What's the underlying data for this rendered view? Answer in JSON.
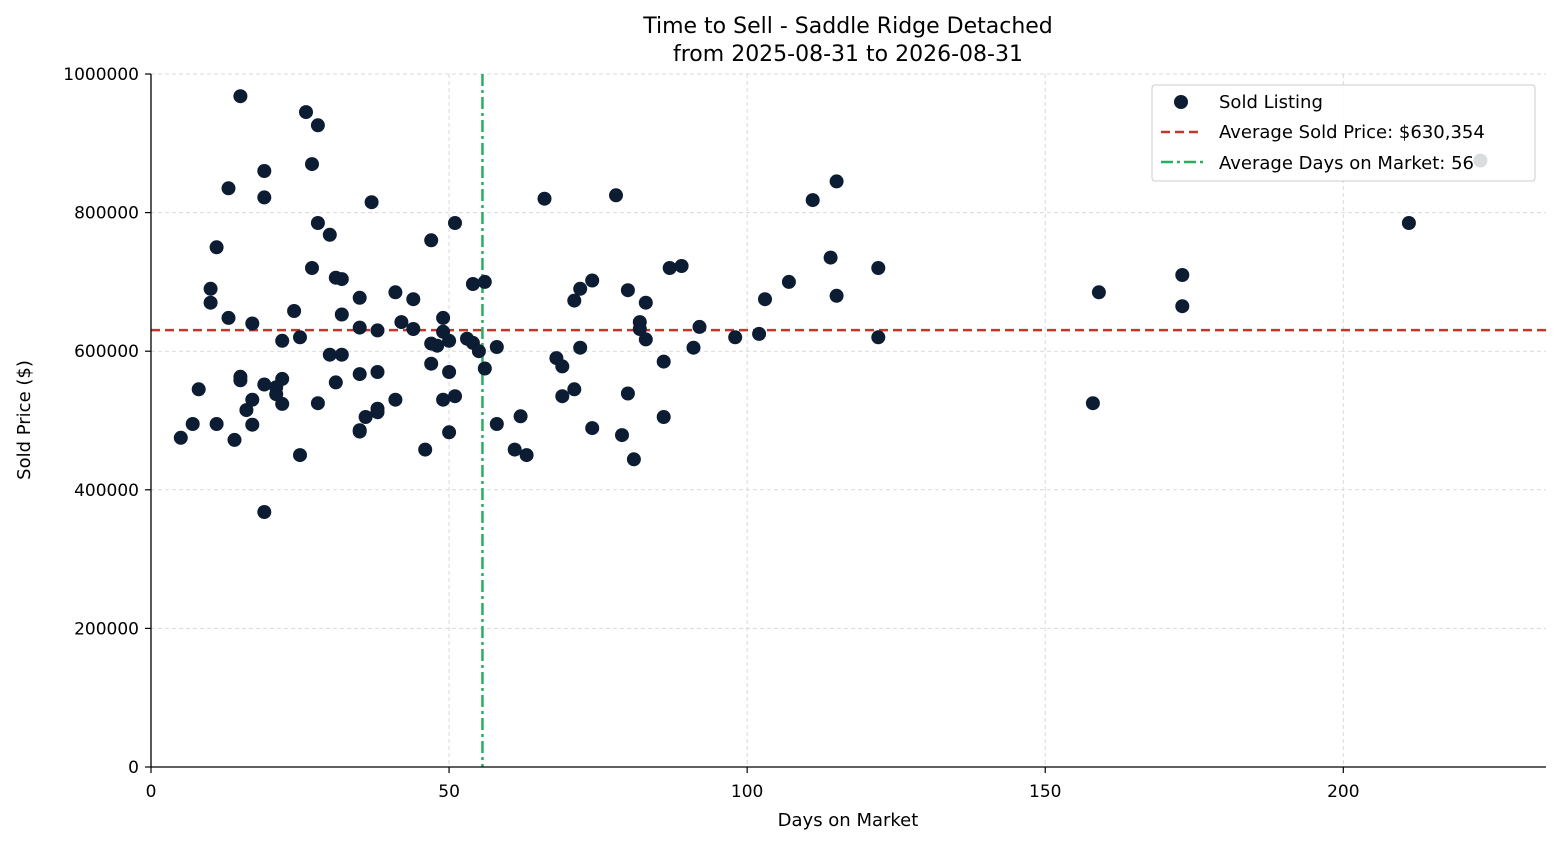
{
  "chart_data": {
    "type": "scatter",
    "title_line1": "Time to Sell - Saddle Ridge Detached",
    "title_line2": "from 2025-08-31 to 2026-08-31",
    "xlabel": "Days on Market",
    "ylabel": "Sold Price ($)",
    "xlim": [
      0,
      234
    ],
    "ylim": [
      0,
      1000000
    ],
    "xticks": [
      0,
      50,
      100,
      150,
      200
    ],
    "yticks": [
      0,
      200000,
      400000,
      600000,
      800000,
      1000000
    ],
    "grid": true,
    "legend_position": "top-right",
    "colors": {
      "points": "#0b1c33",
      "avg_price": "#c0392b",
      "avg_days": "#27ae60",
      "grid": "#d9d9d9"
    },
    "series": [
      {
        "name": "Sold Listing",
        "points": [
          [
            5,
            475000
          ],
          [
            7,
            495000
          ],
          [
            8,
            545000
          ],
          [
            10,
            690000
          ],
          [
            10,
            670000
          ],
          [
            11,
            750000
          ],
          [
            11,
            495000
          ],
          [
            13,
            835000
          ],
          [
            13,
            648000
          ],
          [
            14,
            472000
          ],
          [
            15,
            968000
          ],
          [
            15,
            563000
          ],
          [
            15,
            558000
          ],
          [
            16,
            515000
          ],
          [
            17,
            640000
          ],
          [
            17,
            530000
          ],
          [
            17,
            494000
          ],
          [
            19,
            860000
          ],
          [
            19,
            822000
          ],
          [
            19,
            552000
          ],
          [
            19,
            368000
          ],
          [
            21,
            548000
          ],
          [
            21,
            538000
          ],
          [
            22,
            560000
          ],
          [
            22,
            524000
          ],
          [
            22,
            615000
          ],
          [
            24,
            658000
          ],
          [
            25,
            620000
          ],
          [
            25,
            450000
          ],
          [
            26,
            945000
          ],
          [
            27,
            870000
          ],
          [
            27,
            720000
          ],
          [
            28,
            926000
          ],
          [
            28,
            785000
          ],
          [
            28,
            525000
          ],
          [
            30,
            768000
          ],
          [
            30,
            595000
          ],
          [
            31,
            706000
          ],
          [
            31,
            555000
          ],
          [
            32,
            704000
          ],
          [
            32,
            653000
          ],
          [
            32,
            595000
          ],
          [
            35,
            677000
          ],
          [
            35,
            634000
          ],
          [
            35,
            567000
          ],
          [
            35,
            486000
          ],
          [
            35,
            484000
          ],
          [
            36,
            505000
          ],
          [
            37,
            815000
          ],
          [
            38,
            630000
          ],
          [
            38,
            570000
          ],
          [
            38,
            517000
          ],
          [
            38,
            512000
          ],
          [
            41,
            685000
          ],
          [
            41,
            530000
          ],
          [
            42,
            642000
          ],
          [
            44,
            675000
          ],
          [
            44,
            632000
          ],
          [
            46,
            458000
          ],
          [
            47,
            760000
          ],
          [
            47,
            611000
          ],
          [
            47,
            582000
          ],
          [
            48,
            608000
          ],
          [
            49,
            648000
          ],
          [
            49,
            628000
          ],
          [
            49,
            530000
          ],
          [
            50,
            615000
          ],
          [
            50,
            570000
          ],
          [
            50,
            483000
          ],
          [
            51,
            785000
          ],
          [
            51,
            535000
          ],
          [
            53,
            618000
          ],
          [
            54,
            697000
          ],
          [
            54,
            612000
          ],
          [
            55,
            600000
          ],
          [
            56,
            700000
          ],
          [
            56,
            575000
          ],
          [
            58,
            606000
          ],
          [
            58,
            495000
          ],
          [
            61,
            458000
          ],
          [
            62,
            506000
          ],
          [
            63,
            450000
          ],
          [
            66,
            820000
          ],
          [
            68,
            590000
          ],
          [
            69,
            578000
          ],
          [
            69,
            535000
          ],
          [
            71,
            673000
          ],
          [
            71,
            545000
          ],
          [
            72,
            690000
          ],
          [
            72,
            605000
          ],
          [
            74,
            702000
          ],
          [
            74,
            489000
          ],
          [
            78,
            825000
          ],
          [
            79,
            479000
          ],
          [
            80,
            688000
          ],
          [
            80,
            539000
          ],
          [
            81,
            444000
          ],
          [
            82,
            642000
          ],
          [
            82,
            632000
          ],
          [
            83,
            670000
          ],
          [
            83,
            617000
          ],
          [
            86,
            585000
          ],
          [
            86,
            505000
          ],
          [
            87,
            720000
          ],
          [
            89,
            723000
          ],
          [
            91,
            605000
          ],
          [
            92,
            635000
          ],
          [
            98,
            620000
          ],
          [
            102,
            625000
          ],
          [
            103,
            675000
          ],
          [
            107,
            700000
          ],
          [
            111,
            818000
          ],
          [
            114,
            735000
          ],
          [
            115,
            845000
          ],
          [
            115,
            680000
          ],
          [
            122,
            720000
          ],
          [
            122,
            620000
          ],
          [
            158,
            525000
          ],
          [
            159,
            685000
          ],
          [
            173,
            710000
          ],
          [
            173,
            665000
          ],
          [
            211,
            785000
          ],
          [
            223,
            875000
          ]
        ]
      }
    ],
    "average_price": {
      "name": "Average Sold Price: $630,354",
      "value": 630354
    },
    "average_days": {
      "name": "Average Days on Market: 56",
      "value": 55.6
    }
  }
}
